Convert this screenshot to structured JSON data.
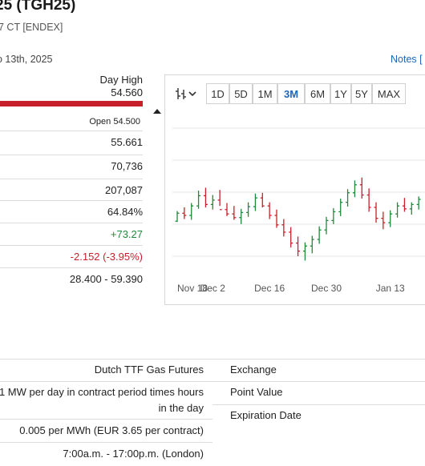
{
  "header": {
    "title": "25 (TGH25)",
    "subtitle": "7 CT [ENDEX]",
    "date": "o 13th, 2025",
    "notes_label": "Notes ["
  },
  "stats": {
    "day_high_label": "Day High",
    "day_high_value": "54.560",
    "open_label": "Open 54.500",
    "rows": [
      "55.661",
      "70,736",
      "207,087",
      "64.84%",
      "+73.27",
      "-2.152 (-3.95%)",
      "28.400 - 59.390"
    ]
  },
  "chart": {
    "ranges": [
      "1D",
      "5D",
      "1M",
      "3M",
      "6M",
      "1Y",
      "5Y",
      "MAX"
    ],
    "active_range": "3M",
    "x_labels": [
      "Nov 18",
      "Dec 2",
      "Dec 16",
      "Dec 30",
      "Jan 13"
    ],
    "up_color": "#1f8a3b",
    "down_color": "#c8202a"
  },
  "chart_data": {
    "type": "line",
    "x": [
      "Nov 18",
      "",
      "",
      "",
      "",
      "Dec 2",
      "",
      "",
      "",
      "",
      "",
      "",
      "",
      "Dec 16",
      "",
      "",
      "",
      "",
      "",
      "",
      "",
      "Dec 30",
      "",
      "",
      "",
      "",
      "",
      "",
      "",
      "",
      "Jan 13",
      "",
      "",
      "",
      ""
    ],
    "series": [
      {
        "values": [
          [
            47.0,
            48.4,
            46.9,
            48.1
          ],
          [
            48.1,
            48.9,
            47.3,
            47.8
          ],
          [
            47.8,
            49.5,
            47.2,
            49.1
          ],
          [
            49.1,
            51.2,
            48.7,
            50.5
          ],
          [
            50.5,
            51.6,
            48.9,
            49.3
          ],
          [
            49.3,
            50.6,
            48.6,
            49.9
          ],
          [
            49.9,
            51.3,
            49.1,
            48.6
          ],
          [
            48.6,
            49.5,
            47.7,
            48.0
          ],
          [
            48.0,
            49.1,
            47.2,
            47.5
          ],
          [
            47.5,
            48.7,
            46.6,
            48.2
          ],
          [
            48.2,
            49.6,
            47.6,
            49.0
          ],
          [
            49.0,
            50.8,
            48.4,
            50.2
          ],
          [
            50.2,
            50.9,
            48.9,
            49.1
          ],
          [
            49.1,
            49.6,
            47.3,
            47.8
          ],
          [
            47.8,
            48.6,
            46.1,
            46.5
          ],
          [
            46.5,
            47.3,
            44.9,
            45.5
          ],
          [
            45.5,
            46.2,
            43.4,
            44.0
          ],
          [
            44.0,
            44.9,
            42.2,
            42.9
          ],
          [
            42.9,
            44.1,
            41.6,
            43.6
          ],
          [
            43.6,
            45.0,
            42.6,
            44.5
          ],
          [
            44.5,
            46.3,
            43.9,
            45.8
          ],
          [
            45.8,
            47.6,
            45.2,
            47.1
          ],
          [
            47.1,
            48.8,
            46.6,
            48.3
          ],
          [
            48.3,
            50.1,
            47.7,
            49.6
          ],
          [
            49.6,
            51.4,
            49.0,
            50.9
          ],
          [
            50.9,
            52.6,
            50.3,
            52.0
          ],
          [
            52.0,
            53.0,
            50.1,
            50.6
          ],
          [
            50.6,
            51.5,
            48.3,
            48.9
          ],
          [
            48.9,
            49.6,
            46.8,
            47.4
          ],
          [
            47.4,
            48.3,
            45.9,
            46.8
          ],
          [
            46.8,
            48.5,
            46.2,
            48.0
          ],
          [
            48.0,
            49.6,
            47.5,
            49.1
          ],
          [
            49.1,
            50.2,
            48.3,
            48.7
          ],
          [
            48.7,
            49.6,
            47.9,
            49.3
          ],
          [
            49.3,
            50.4,
            48.6,
            50.0
          ]
        ]
      }
    ],
    "ylim": [
      40,
      60
    ]
  },
  "specs": {
    "rows": [
      {
        "value": "Dutch TTF Gas Futures",
        "label": "Exchange"
      },
      {
        "value": "1 MW per day in contract period times hours in the day",
        "label": "Point Value"
      },
      {
        "value": "",
        "label": "Expiration Date"
      },
      {
        "value": "0.005 per MWh (EUR 3.65 per contract)",
        "label": ""
      },
      {
        "value": "7:00a.m. - 17:00p.m. (London)",
        "label": ""
      }
    ]
  }
}
